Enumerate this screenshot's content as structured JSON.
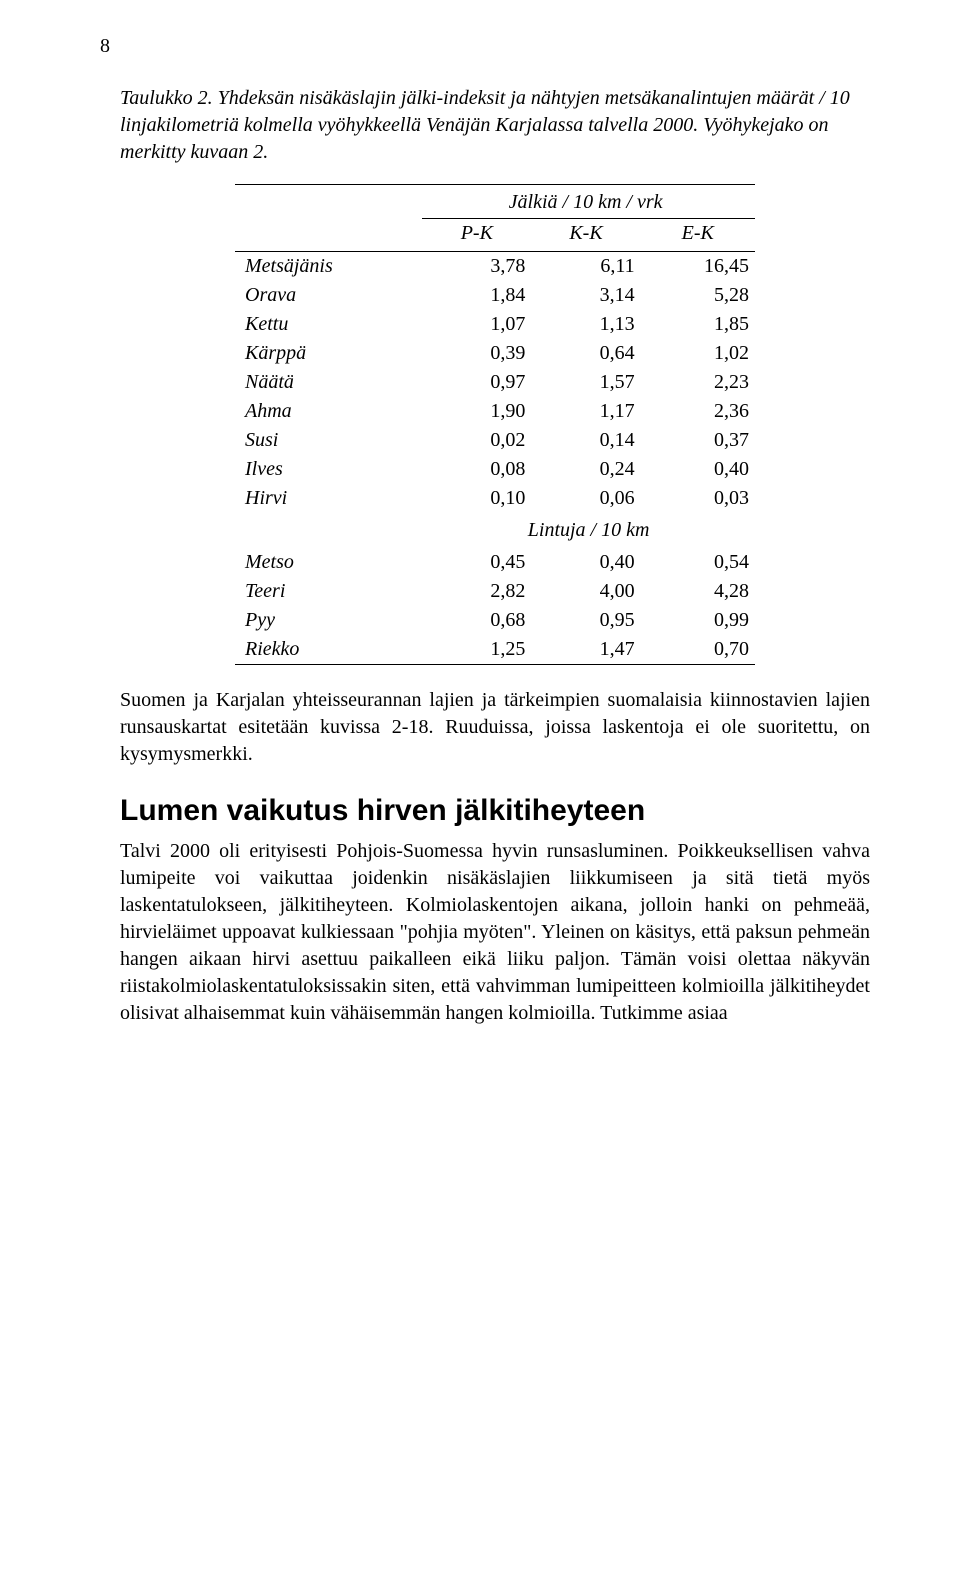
{
  "page_number": "8",
  "caption": "Taulukko 2. Yhdeksän nisäkäslajin jälki-indeksit ja nähtyjen metsäkanalintujen määrät / 10 linjakilometriä kolmella vyöhykkeellä Venäjän Karjalassa talvella 2000. Vyöhykejako on merkitty kuvaan 2.",
  "table": {
    "super_header": "Jälkiä / 10 km / vrk",
    "cols": [
      "P-K",
      "K-K",
      "E-K"
    ],
    "section1_rows": [
      {
        "label": "Metsäjänis",
        "v": [
          "3,78",
          "6,11",
          "16,45"
        ]
      },
      {
        "label": "Orava",
        "v": [
          "1,84",
          "3,14",
          "5,28"
        ]
      },
      {
        "label": "Kettu",
        "v": [
          "1,07",
          "1,13",
          "1,85"
        ]
      },
      {
        "label": "Kärppä",
        "v": [
          "0,39",
          "0,64",
          "1,02"
        ]
      },
      {
        "label": "Näätä",
        "v": [
          "0,97",
          "1,57",
          "2,23"
        ]
      },
      {
        "label": "Ahma",
        "v": [
          "1,90",
          "1,17",
          "2,36"
        ]
      },
      {
        "label": "Susi",
        "v": [
          "0,02",
          "0,14",
          "0,37"
        ]
      },
      {
        "label": "Ilves",
        "v": [
          "0,08",
          "0,24",
          "0,40"
        ]
      },
      {
        "label": "Hirvi",
        "v": [
          "0,10",
          "0,06",
          "0,03"
        ]
      }
    ],
    "mid_header": "Lintuja / 10 km",
    "section2_rows": [
      {
        "label": "Metso",
        "v": [
          "0,45",
          "0,40",
          "0,54"
        ]
      },
      {
        "label": "Teeri",
        "v": [
          "2,82",
          "4,00",
          "4,28"
        ]
      },
      {
        "label": "Pyy",
        "v": [
          "0,68",
          "0,95",
          "0,99"
        ]
      },
      {
        "label": "Riekko",
        "v": [
          "1,25",
          "1,47",
          "0,70"
        ]
      }
    ]
  },
  "para1": "Suomen ja Karjalan yhteisseurannan lajien ja tärkeimpien suomalaisia kiinnostavien lajien runsauskartat esitetään kuvissa 2-18. Ruuduissa, joissa laskentoja ei ole suoritettu, on kysymysmerkki.",
  "heading": "Lumen vaikutus hirven jälkitiheyteen",
  "para2": "Talvi 2000 oli erityisesti Pohjois-Suomessa hyvin runsasluminen. Poikkeuksellisen vahva lumipeite voi vaikuttaa joidenkin nisäkäslajien liikkumiseen ja sitä tietä myös laskentatulokseen, jälkitiheyteen. Kolmiolaskentojen aikana, jolloin hanki on pehmeää, hirvieläimet uppoavat kulkiessaan \"pohjia myöten\". Yleinen on käsitys, että paksun pehmeän hangen aikaan hirvi asettuu paikalleen eikä liiku paljon. Tämän voisi olettaa näkyvän riistakolmiolaskentatuloksissakin siten, että vahvimman lumipeitteen kolmioilla jälkitiheydet olisivat alhaisemmat kuin vähäisemmän hangen kolmioilla. Tutkimme asiaa"
}
